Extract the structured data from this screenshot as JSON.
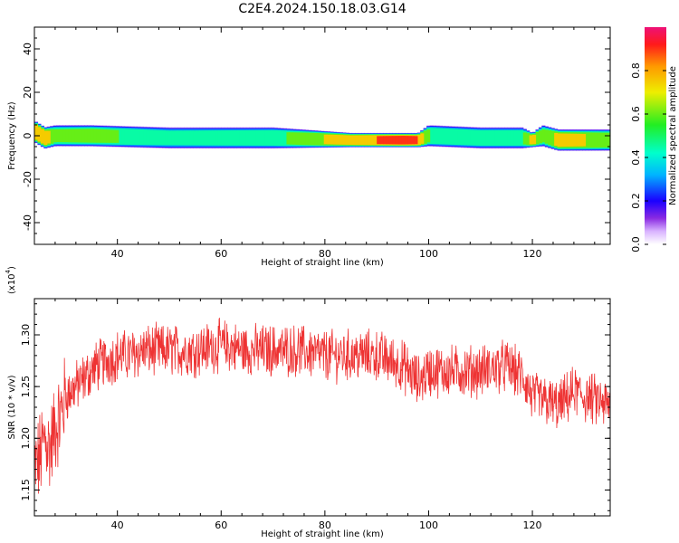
{
  "title": "C2E4.2024.150.18.03.G14",
  "chart_data": [
    {
      "type": "heatmap",
      "xlabel": "Height of straight line (km)",
      "ylabel": "Frequency (Hz)",
      "xlim": [
        24,
        135
      ],
      "ylim": [
        -50,
        50
      ],
      "x_ticks": [
        40,
        60,
        80,
        100,
        120
      ],
      "y_ticks": [
        -40,
        -20,
        0,
        20,
        40
      ],
      "colorbar": {
        "label": "Normalized spectral amplitude",
        "range": [
          0,
          1
        ],
        "ticks": [
          "0.0",
          "0.2",
          "0.4",
          "0.6",
          "0.8"
        ]
      },
      "ridge": {
        "x": [
          24,
          26,
          28,
          35,
          50,
          70,
          85,
          95,
          98,
          100,
          110,
          118,
          120,
          122,
          125,
          130,
          135
        ],
        "center_freq": [
          2,
          -1,
          0,
          0,
          -1,
          -1,
          -2,
          -2,
          -2,
          0,
          -1,
          -1,
          -2,
          0,
          -2,
          -2,
          -2
        ],
        "half_width": [
          3,
          3,
          3,
          3,
          3,
          3,
          2,
          2,
          2,
          3,
          3,
          3,
          2,
          3,
          3,
          3,
          3
        ],
        "peak_amplitude": [
          0.9,
          0.85,
          0.6,
          0.65,
          0.5,
          0.55,
          0.85,
          0.95,
          0.9,
          0.6,
          0.55,
          0.55,
          0.8,
          0.6,
          0.8,
          0.75,
          0.7
        ]
      }
    },
    {
      "type": "line",
      "xlabel": "Height of straight line (km)",
      "ylabel": "SNR (10 * v/v)",
      "y_multiplier": "(x10",
      "y_multiplier_exp": "4",
      "y_multiplier_close": ")",
      "xlim": [
        24,
        135
      ],
      "ylim": [
        1.125,
        1.335
      ],
      "x_ticks": [
        40,
        60,
        80,
        100,
        120
      ],
      "y_ticks": [
        "1.15",
        "1.20",
        "1.25",
        "1.30"
      ],
      "series": [
        {
          "color": "#ee3333",
          "x": [
            24,
            25,
            26,
            27,
            28,
            29,
            30,
            32,
            34,
            36,
            38,
            40,
            42,
            45,
            50,
            55,
            60,
            65,
            70,
            75,
            80,
            85,
            90,
            95,
            98,
            100,
            105,
            110,
            115,
            118,
            120,
            123,
            125,
            128,
            130,
            133,
            135
          ],
          "trend": [
            1.17,
            1.18,
            1.2,
            1.19,
            1.21,
            1.22,
            1.24,
            1.25,
            1.26,
            1.27,
            1.275,
            1.28,
            1.28,
            1.285,
            1.285,
            1.285,
            1.29,
            1.285,
            1.285,
            1.285,
            1.28,
            1.28,
            1.28,
            1.27,
            1.255,
            1.265,
            1.265,
            1.265,
            1.27,
            1.26,
            1.24,
            1.235,
            1.23,
            1.245,
            1.24,
            1.235,
            1.23
          ],
          "noise_amplitude": 0.022
        }
      ]
    }
  ]
}
